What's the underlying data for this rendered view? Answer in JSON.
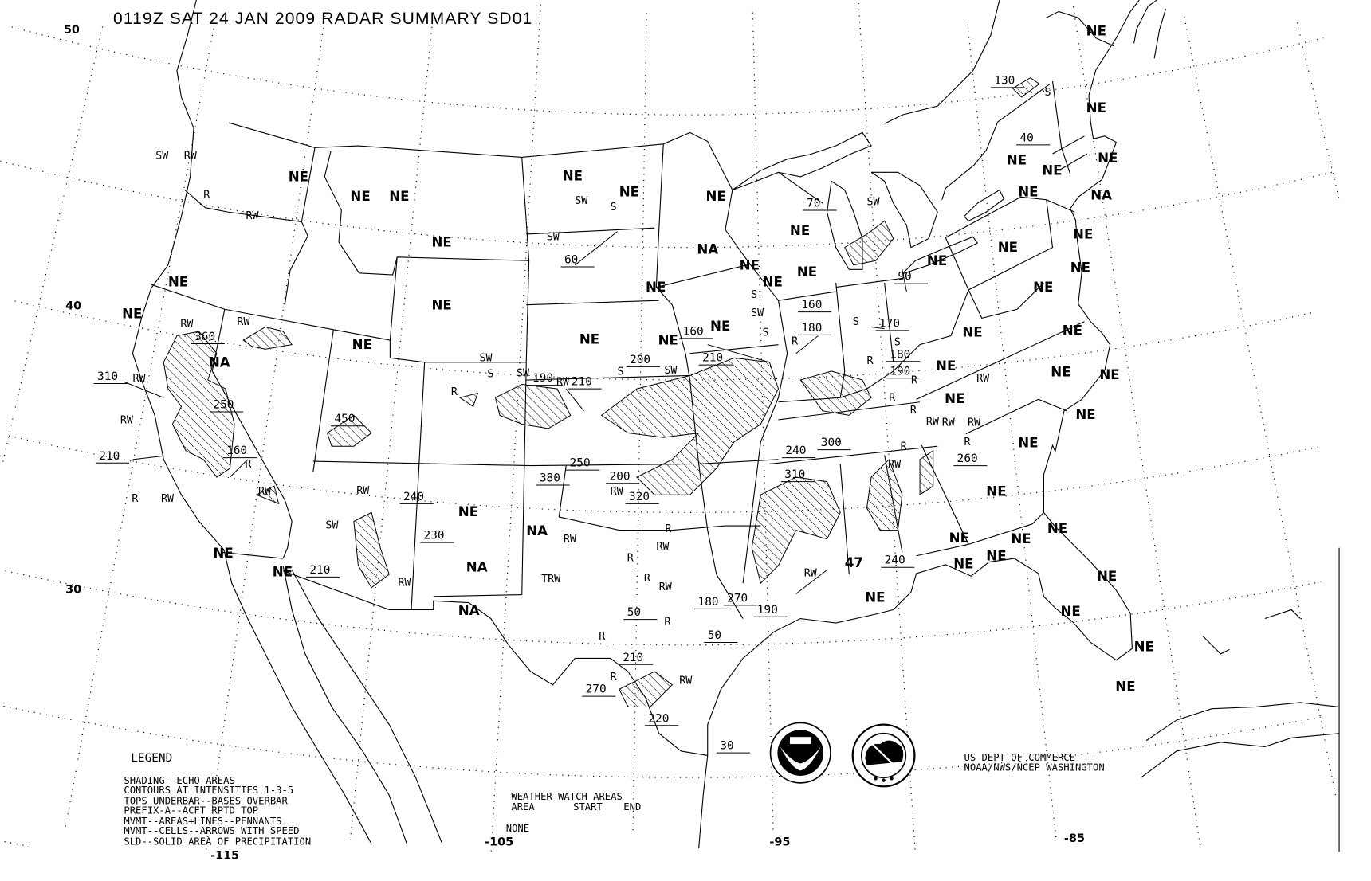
{
  "title": "0119Z SAT 24 JAN 2009 RADAR SUMMARY SD01",
  "graticule": {
    "lat_labels": [
      "50",
      "40",
      "30"
    ],
    "lon_labels": [
      "-115",
      "-105",
      "-95",
      "-85"
    ]
  },
  "coverage_codes": [
    "NE",
    "NE",
    "NE",
    "NE",
    "NE",
    "NE",
    "NE",
    "NA",
    "NE",
    "NE",
    "NE",
    "NE",
    "NA",
    "NE",
    "NE",
    "NE",
    "NE",
    "NE",
    "NE",
    "NE",
    "NE",
    "NE",
    "NE",
    "NE",
    "NE",
    "NE",
    "NE",
    "NE",
    "NE",
    "NA",
    "NE",
    "NE",
    "NE",
    "NE",
    "NE",
    "NE",
    "NE",
    "NE",
    "NE",
    "NE",
    "NE",
    "NE",
    "NE",
    "NE",
    "NE",
    "NE",
    "NE",
    "NE",
    "NE",
    "NE",
    "NE",
    "NE",
    "NE",
    "NE",
    "NE",
    "NA",
    "NA",
    "NA"
  ],
  "echo_tops": [
    "360",
    "310",
    "250",
    "210",
    "160",
    "450",
    "240",
    "230",
    "210",
    "190",
    "210",
    "200",
    "210",
    "160",
    "160",
    "180",
    "170",
    "90",
    "70",
    "60",
    "130",
    "40",
    "180",
    "190",
    "300",
    "240",
    "310",
    "260",
    "250",
    "380",
    "200",
    "320",
    "240",
    "190",
    "270",
    "180",
    "50",
    "50",
    "210",
    "270",
    "220",
    "30"
  ],
  "precip_types": [
    "SW",
    "RW",
    "R",
    "RW",
    "RW",
    "RW",
    "RW",
    "RW",
    "R",
    "R",
    "RW",
    "RW",
    "RW",
    "SW",
    "RW",
    "SW",
    "S",
    "SW",
    "SW",
    "S",
    "SW",
    "RW",
    "R",
    "S",
    "SW",
    "RW",
    "R",
    "R",
    "RW",
    "RW",
    "RW",
    "TRW",
    "R",
    "R",
    "R",
    "R",
    "RW",
    "S",
    "SW",
    "S",
    "R",
    "R",
    "S",
    "R",
    "R",
    "R",
    "RW",
    "RW",
    "RW",
    "R",
    "RW",
    "RW",
    "R",
    "RW",
    "S",
    "SW",
    "S"
  ],
  "cell_speed": "47",
  "legend": {
    "heading": "LEGEND",
    "lines": [
      "SHADING--ECHO AREAS",
      "CONTOURS AT INTENSITIES 1-3-5",
      "TOPS UNDERBAR--BASES OVERBAR",
      "PREFIX-A--ACFT RPTD TOP",
      "MVMT--AREAS+LINES--PENNANTS",
      "MVMT--CELLS--ARROWS WITH SPEED",
      "SLD--SOLID AREA OF PRECIPITATION"
    ]
  },
  "watch": {
    "heading": "WEATHER WATCH AREAS",
    "columns": [
      "AREA",
      "START",
      "END"
    ],
    "status": "NONE"
  },
  "agency": {
    "lines": [
      "US DEPT OF COMMERCE",
      "NOAA/NWS/NCEP WASHINGTON"
    ]
  },
  "logos": {
    "noaa": "NOAA",
    "nws": "NATIONAL WEATHER SERVICE"
  }
}
